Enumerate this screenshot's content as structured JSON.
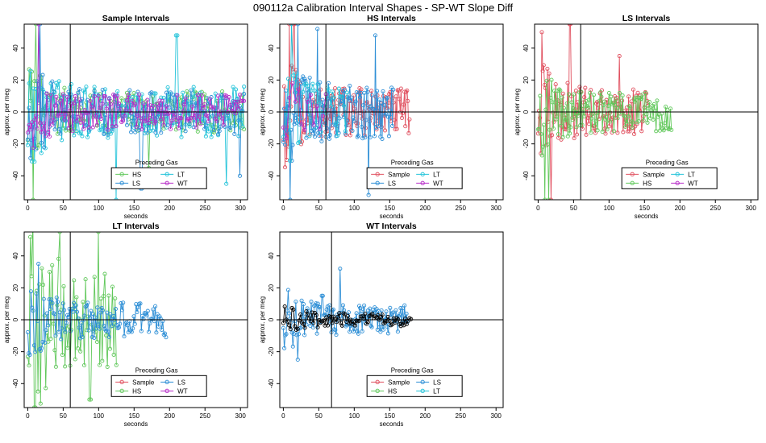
{
  "title": "090112a   Calibration Interval Shapes - SP-WT Slope Diff",
  "colors": {
    "Sample": "#E0505F",
    "HS": "#61C85B",
    "LS": "#2E8FD6",
    "LT": "#21C3D9",
    "WT": "#B72DC8",
    "black": "#000000"
  },
  "chart_data": [
    {
      "type": "line",
      "title": "Sample Intervals",
      "xlabel": "seconds",
      "ylabel": "approx. per meg",
      "xlim": [
        -5,
        310
      ],
      "ylim": [
        -55,
        55
      ],
      "xticks": [
        0,
        50,
        100,
        150,
        200,
        250,
        300
      ],
      "yticks": [
        -40,
        -20,
        0,
        20,
        40
      ],
      "vline": 60,
      "hline": 0,
      "legend_title": "Preceding Gas",
      "legend_items": [
        "HS",
        "LT",
        "LS",
        "WT"
      ],
      "series": [
        {
          "name": "HS",
          "duration": 305,
          "n": 160,
          "amp": 13,
          "spikes": [
            [
              8,
              -55
            ],
            [
              12,
              55
            ],
            [
              170,
              -35
            ]
          ]
        },
        {
          "name": "LT",
          "duration": 305,
          "n": 160,
          "amp": 16,
          "spikes": [
            [
              15,
              55
            ],
            [
              125,
              -55
            ],
            [
              210,
              48
            ],
            [
              280,
              -45
            ]
          ]
        },
        {
          "name": "LS",
          "duration": 305,
          "n": 160,
          "amp": 14,
          "spikes": [
            [
              18,
              55
            ],
            [
              160,
              -48
            ],
            [
              300,
              -40
            ]
          ]
        },
        {
          "name": "WT",
          "duration": 305,
          "n": 160,
          "amp": 11,
          "spikes": [
            [
              16,
              55
            ]
          ]
        }
      ]
    },
    {
      "type": "line",
      "title": "HS Intervals",
      "xlabel": "seconds",
      "ylabel": "approx. per meg",
      "xlim": [
        -5,
        310
      ],
      "ylim": [
        -55,
        55
      ],
      "xticks": [
        0,
        50,
        100,
        150,
        200,
        250,
        300
      ],
      "yticks": [
        -40,
        -20,
        0,
        20,
        40
      ],
      "vline": 60,
      "hline": 0,
      "legend_title": "Preceding Gas",
      "legend_items": [
        "Sample",
        "LT",
        "LS",
        "WT"
      ],
      "series": [
        {
          "name": "Sample",
          "duration": 178,
          "n": 150,
          "amp": 15,
          "spikes": [
            [
              8,
              55
            ],
            [
              15,
              55
            ],
            [
              5,
              -30
            ]
          ]
        },
        {
          "name": "LS",
          "duration": 155,
          "n": 130,
          "amp": 17,
          "spikes": [
            [
              10,
              -55
            ],
            [
              20,
              55
            ],
            [
              48,
              52
            ],
            [
              120,
              -52
            ],
            [
              130,
              48
            ]
          ]
        },
        {
          "name": "LT",
          "duration": 90,
          "n": 40,
          "amp": 15,
          "spikes": [
            [
              12,
              55
            ]
          ]
        },
        {
          "name": "WT",
          "duration": 60,
          "n": 15,
          "amp": 10,
          "spikes": []
        }
      ]
    },
    {
      "type": "line",
      "title": "LS Intervals",
      "xlabel": "seconds",
      "ylabel": "approx. per meg",
      "xlim": [
        -5,
        310
      ],
      "ylim": [
        -55,
        55
      ],
      "xticks": [
        0,
        50,
        100,
        150,
        200,
        250,
        300
      ],
      "yticks": [
        -40,
        -20,
        0,
        20,
        40
      ],
      "vline": 60,
      "hline": 0,
      "legend_title": "Preceding Gas",
      "legend_items": [
        "Sample",
        "LT",
        "HS",
        "WT"
      ],
      "series": [
        {
          "name": "Sample",
          "duration": 155,
          "n": 120,
          "amp": 14,
          "spikes": [
            [
              5,
              50
            ],
            [
              18,
              -55
            ],
            [
              45,
              55
            ],
            [
              115,
              35
            ]
          ]
        },
        {
          "name": "HS",
          "duration": 188,
          "n": 140,
          "amp": 12,
          "spikes": [
            [
              10,
              -55
            ],
            [
              15,
              -55
            ]
          ]
        }
      ]
    },
    {
      "type": "line",
      "title": "LT Intervals",
      "xlabel": "seconds",
      "ylabel": "approx. per meg",
      "xlim": [
        -5,
        310
      ],
      "ylim": [
        -55,
        55
      ],
      "xticks": [
        0,
        50,
        100,
        150,
        200,
        250,
        300
      ],
      "yticks": [
        -40,
        -20,
        0,
        20,
        40
      ],
      "vline": 60,
      "hline": 0,
      "legend_title": "Preceding Gas",
      "legend_items": [
        "Sample",
        "LS",
        "HS",
        "WT"
      ],
      "series": [
        {
          "name": "HS",
          "duration": 125,
          "n": 70,
          "amp": 30,
          "spikes": [
            [
              10,
              -55
            ],
            [
              45,
              55
            ],
            [
              88,
              -50
            ],
            [
              100,
              55
            ]
          ]
        },
        {
          "name": "LS",
          "duration": 195,
          "n": 130,
          "amp": 11,
          "spikes": [
            [
              15,
              35
            ]
          ]
        }
      ]
    },
    {
      "type": "line",
      "title": "WT Intervals",
      "xlabel": "seconds",
      "ylabel": "approx. per meg",
      "xlim": [
        -5,
        310
      ],
      "ylim": [
        -55,
        55
      ],
      "xticks": [
        0,
        50,
        100,
        150,
        200,
        250,
        300
      ],
      "yticks": [
        -40,
        -20,
        0,
        20,
        40
      ],
      "vline": 68,
      "hline": 0,
      "legend_title": "Preceding Gas",
      "legend_items": [
        "Sample",
        "LS",
        "HS",
        "LT"
      ],
      "series": [
        {
          "name": "LS",
          "duration": 175,
          "n": 130,
          "amp": 9,
          "spikes": [
            [
              80,
              32
            ],
            [
              20,
              -25
            ],
            [
              55,
              15
            ]
          ]
        },
        {
          "name": "black",
          "duration": 180,
          "n": 90,
          "amp": 4,
          "spikes": []
        }
      ]
    }
  ]
}
